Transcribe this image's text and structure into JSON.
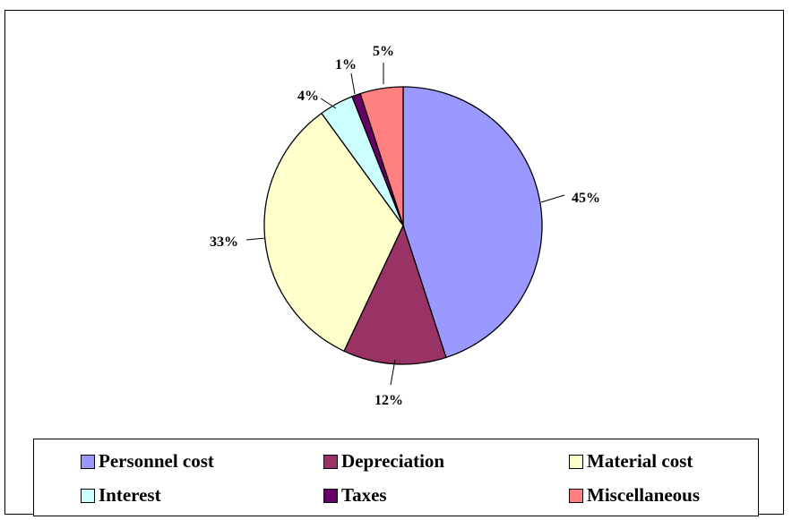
{
  "chart_data": {
    "type": "pie",
    "title": "",
    "labels_format": "percent",
    "start_angle_deg": 0,
    "direction": "clockwise",
    "legend_position": "bottom",
    "slices": [
      {
        "label": "Personnel cost",
        "value": 45,
        "display": "45%",
        "color": "#9999ff"
      },
      {
        "label": "Depreciation",
        "value": 12,
        "display": "12%",
        "color": "#993366"
      },
      {
        "label": "Material cost",
        "value": 33,
        "display": "33%",
        "color": "#ffffcc"
      },
      {
        "label": "Interest",
        "value": 4,
        "display": "4%",
        "color": "#ccffff"
      },
      {
        "label": "Taxes",
        "value": 1,
        "display": "1%",
        "color": "#660066"
      },
      {
        "label": "Miscellaneous",
        "value": 5,
        "display": "5%",
        "color": "#ff8080"
      }
    ]
  }
}
